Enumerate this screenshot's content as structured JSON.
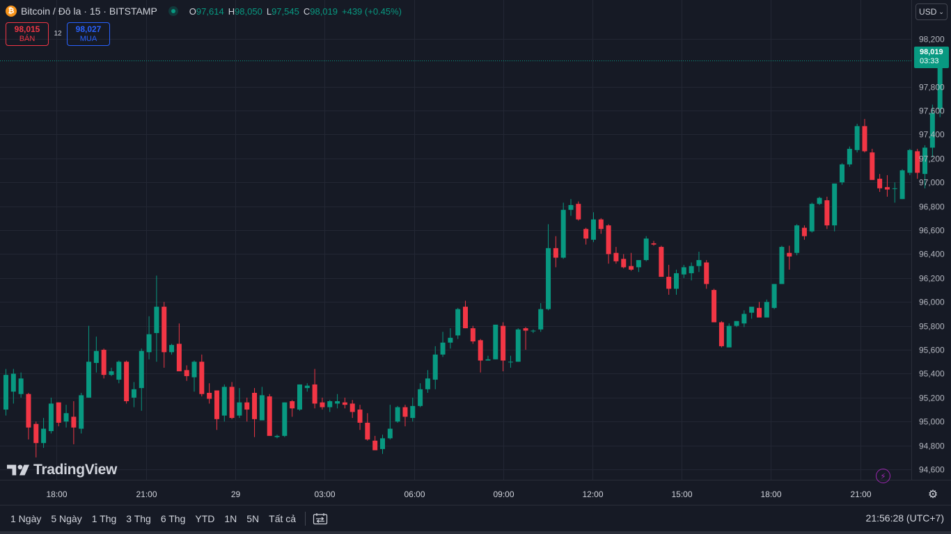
{
  "header": {
    "symbol_title": "Bitcoin / Đô la · 15 · BITSTAMP",
    "coin_icon": "₿",
    "open_label": "O",
    "open_value": "97,614",
    "high_label": "H",
    "high_value": "98,050",
    "low_label": "L",
    "low_value": "97,545",
    "close_label": "C",
    "close_value": "98,019",
    "change": "+439 (+0.45%)"
  },
  "trade": {
    "sell_price": "98,015",
    "sell_label": "BÁN",
    "spread": "12",
    "buy_price": "98,027",
    "buy_label": "MUA"
  },
  "currency_button": "USD",
  "last_price": {
    "value": "98,019",
    "countdown": "03:33"
  },
  "logo_text": "TradingView",
  "bottom_bar": {
    "ranges": [
      "1 Ngày",
      "5 Ngày",
      "1 Thg",
      "3 Thg",
      "6 Thg",
      "YTD",
      "1N",
      "5N",
      "Tất cả"
    ],
    "clock": "21:56:28 (UTC+7)"
  },
  "colors": {
    "up": "#089981",
    "down": "#f23645",
    "background": "#161a25",
    "grid": "#232734",
    "text": "#d1d4dc"
  },
  "icons": {
    "coin": "bitcoin-icon",
    "live": "market-open-dot-icon",
    "goto": "go-to-date-icon",
    "bolt": "lightning-icon",
    "settings": "gear-icon"
  },
  "chart_data": {
    "type": "candlestick",
    "interval": "15",
    "y_ticks": [
      94600,
      94800,
      95000,
      95200,
      95400,
      95600,
      95800,
      96000,
      96200,
      96400,
      96600,
      96800,
      97000,
      97200,
      97400,
      97600,
      97800,
      98200
    ],
    "x_ticks": [
      "18:00",
      "21:00",
      "29",
      "03:00",
      "06:00",
      "09:00",
      "12:00",
      "15:00",
      "18:00",
      "21:00"
    ],
    "ylim": [
      94455,
      98356
    ],
    "grid": true,
    "candles": [
      {
        "o": 95100,
        "h": 95440,
        "l": 95050,
        "c": 95390
      },
      {
        "o": 95250,
        "h": 95440,
        "l": 95150,
        "c": 95400
      },
      {
        "o": 95230,
        "h": 95410,
        "l": 95200,
        "c": 95360
      },
      {
        "o": 95230,
        "h": 95240,
        "l": 94850,
        "c": 94950
      },
      {
        "o": 94980,
        "h": 95000,
        "l": 94700,
        "c": 94820
      },
      {
        "o": 94820,
        "h": 95030,
        "l": 94780,
        "c": 94940
      },
      {
        "o": 94920,
        "h": 95200,
        "l": 94900,
        "c": 95150
      },
      {
        "o": 95160,
        "h": 95160,
        "l": 94960,
        "c": 94990
      },
      {
        "o": 95000,
        "h": 95140,
        "l": 94950,
        "c": 95070
      },
      {
        "o": 95040,
        "h": 95170,
        "l": 94810,
        "c": 94950
      },
      {
        "o": 94940,
        "h": 95240,
        "l": 94900,
        "c": 95220
      },
      {
        "o": 95200,
        "h": 95800,
        "l": 95200,
        "c": 95500
      },
      {
        "o": 95490,
        "h": 95710,
        "l": 95410,
        "c": 95590
      },
      {
        "o": 95600,
        "h": 95610,
        "l": 95360,
        "c": 95390
      },
      {
        "o": 95390,
        "h": 95450,
        "l": 95380,
        "c": 95420
      },
      {
        "o": 95350,
        "h": 95510,
        "l": 95320,
        "c": 95500
      },
      {
        "o": 95500,
        "h": 95510,
        "l": 95150,
        "c": 95170
      },
      {
        "o": 95200,
        "h": 95330,
        "l": 95120,
        "c": 95270
      },
      {
        "o": 95280,
        "h": 95610,
        "l": 95090,
        "c": 95590
      },
      {
        "o": 95580,
        "h": 95880,
        "l": 95520,
        "c": 95730
      },
      {
        "o": 95740,
        "h": 96220,
        "l": 95500,
        "c": 95960
      },
      {
        "o": 95960,
        "h": 96000,
        "l": 95450,
        "c": 95580
      },
      {
        "o": 95580,
        "h": 95650,
        "l": 95560,
        "c": 95640
      },
      {
        "o": 95650,
        "h": 95820,
        "l": 95420,
        "c": 95420
      },
      {
        "o": 95430,
        "h": 95470,
        "l": 95340,
        "c": 95380
      },
      {
        "o": 95370,
        "h": 95510,
        "l": 95250,
        "c": 95500
      },
      {
        "o": 95500,
        "h": 95560,
        "l": 95210,
        "c": 95230
      },
      {
        "o": 95240,
        "h": 95320,
        "l": 95150,
        "c": 95190
      },
      {
        "o": 95260,
        "h": 95260,
        "l": 94930,
        "c": 95020
      },
      {
        "o": 95050,
        "h": 95310,
        "l": 95000,
        "c": 95290
      },
      {
        "o": 95290,
        "h": 95330,
        "l": 95020,
        "c": 95030
      },
      {
        "o": 95050,
        "h": 95280,
        "l": 95030,
        "c": 95160
      },
      {
        "o": 95160,
        "h": 95200,
        "l": 95000,
        "c": 95100
      },
      {
        "o": 95240,
        "h": 95280,
        "l": 94870,
        "c": 95020
      },
      {
        "o": 95010,
        "h": 95290,
        "l": 95010,
        "c": 95220
      },
      {
        "o": 95210,
        "h": 95230,
        "l": 94880,
        "c": 94880
      },
      {
        "o": 94870,
        "h": 94890,
        "l": 94860,
        "c": 94880
      },
      {
        "o": 94880,
        "h": 95160,
        "l": 94870,
        "c": 95160
      },
      {
        "o": 95170,
        "h": 95180,
        "l": 95040,
        "c": 95110
      },
      {
        "o": 95100,
        "h": 95310,
        "l": 95090,
        "c": 95310
      },
      {
        "o": 95280,
        "h": 95320,
        "l": 95250,
        "c": 95300
      },
      {
        "o": 95310,
        "h": 95440,
        "l": 95110,
        "c": 95150
      },
      {
        "o": 95160,
        "h": 95200,
        "l": 95100,
        "c": 95120
      },
      {
        "o": 95120,
        "h": 95180,
        "l": 95080,
        "c": 95170
      },
      {
        "o": 95150,
        "h": 95230,
        "l": 95110,
        "c": 95170
      },
      {
        "o": 95160,
        "h": 95200,
        "l": 95110,
        "c": 95140
      },
      {
        "o": 95150,
        "h": 95180,
        "l": 95030,
        "c": 95080
      },
      {
        "o": 95100,
        "h": 95140,
        "l": 94930,
        "c": 94990
      },
      {
        "o": 94990,
        "h": 95070,
        "l": 94840,
        "c": 94850
      },
      {
        "o": 94840,
        "h": 94880,
        "l": 94760,
        "c": 94760
      },
      {
        "o": 94770,
        "h": 94890,
        "l": 94730,
        "c": 94860
      },
      {
        "o": 94860,
        "h": 95140,
        "l": 94850,
        "c": 94940
      },
      {
        "o": 95000,
        "h": 95130,
        "l": 94990,
        "c": 95120
      },
      {
        "o": 95120,
        "h": 95140,
        "l": 94960,
        "c": 95040
      },
      {
        "o": 95030,
        "h": 95200,
        "l": 95000,
        "c": 95130
      },
      {
        "o": 95130,
        "h": 95320,
        "l": 95120,
        "c": 95270
      },
      {
        "o": 95270,
        "h": 95430,
        "l": 95240,
        "c": 95360
      },
      {
        "o": 95350,
        "h": 95630,
        "l": 95270,
        "c": 95560
      },
      {
        "o": 95560,
        "h": 95750,
        "l": 95540,
        "c": 95660
      },
      {
        "o": 95660,
        "h": 95780,
        "l": 95610,
        "c": 95700
      },
      {
        "o": 95720,
        "h": 95950,
        "l": 95690,
        "c": 95940
      },
      {
        "o": 95960,
        "h": 96010,
        "l": 95780,
        "c": 95780
      },
      {
        "o": 95780,
        "h": 95800,
        "l": 95650,
        "c": 95670
      },
      {
        "o": 95680,
        "h": 95690,
        "l": 95410,
        "c": 95510
      },
      {
        "o": 95510,
        "h": 95550,
        "l": 95510,
        "c": 95520
      },
      {
        "o": 95520,
        "h": 95810,
        "l": 95520,
        "c": 95810
      },
      {
        "o": 95800,
        "h": 95830,
        "l": 95420,
        "c": 95510
      },
      {
        "o": 95500,
        "h": 95550,
        "l": 95450,
        "c": 95500
      },
      {
        "o": 95500,
        "h": 95780,
        "l": 95500,
        "c": 95770
      },
      {
        "o": 95780,
        "h": 95790,
        "l": 95600,
        "c": 95760
      },
      {
        "o": 95760,
        "h": 95770,
        "l": 95740,
        "c": 95760
      },
      {
        "o": 95770,
        "h": 95990,
        "l": 95750,
        "c": 95940
      },
      {
        "o": 95940,
        "h": 96650,
        "l": 95930,
        "c": 96450
      },
      {
        "o": 96450,
        "h": 96550,
        "l": 96290,
        "c": 96370
      },
      {
        "o": 96370,
        "h": 96830,
        "l": 96360,
        "c": 96770
      },
      {
        "o": 96770,
        "h": 96860,
        "l": 96720,
        "c": 96810
      },
      {
        "o": 96820,
        "h": 96840,
        "l": 96680,
        "c": 96690
      },
      {
        "o": 96610,
        "h": 96620,
        "l": 96480,
        "c": 96530
      },
      {
        "o": 96520,
        "h": 96750,
        "l": 96500,
        "c": 96690
      },
      {
        "o": 96690,
        "h": 96700,
        "l": 96570,
        "c": 96610
      },
      {
        "o": 96640,
        "h": 96650,
        "l": 96320,
        "c": 96400
      },
      {
        "o": 96410,
        "h": 96460,
        "l": 96320,
        "c": 96340
      },
      {
        "o": 96360,
        "h": 96400,
        "l": 96280,
        "c": 96290
      },
      {
        "o": 96300,
        "h": 96410,
        "l": 96260,
        "c": 96270
      },
      {
        "o": 96290,
        "h": 96340,
        "l": 96250,
        "c": 96350
      },
      {
        "o": 96350,
        "h": 96550,
        "l": 96340,
        "c": 96530
      },
      {
        "o": 96490,
        "h": 96510,
        "l": 96470,
        "c": 96480
      },
      {
        "o": 96460,
        "h": 96470,
        "l": 96210,
        "c": 96210
      },
      {
        "o": 96210,
        "h": 96310,
        "l": 96060,
        "c": 96110
      },
      {
        "o": 96110,
        "h": 96270,
        "l": 96060,
        "c": 96240
      },
      {
        "o": 96230,
        "h": 96310,
        "l": 96200,
        "c": 96290
      },
      {
        "o": 96240,
        "h": 96330,
        "l": 96180,
        "c": 96300
      },
      {
        "o": 96300,
        "h": 96420,
        "l": 96250,
        "c": 96350
      },
      {
        "o": 96330,
        "h": 96350,
        "l": 96110,
        "c": 96150
      },
      {
        "o": 96100,
        "h": 96110,
        "l": 95830,
        "c": 95830
      },
      {
        "o": 95830,
        "h": 95840,
        "l": 95620,
        "c": 95630
      },
      {
        "o": 95620,
        "h": 95820,
        "l": 95620,
        "c": 95800
      },
      {
        "o": 95800,
        "h": 95840,
        "l": 95790,
        "c": 95840
      },
      {
        "o": 95820,
        "h": 95930,
        "l": 95790,
        "c": 95900
      },
      {
        "o": 95910,
        "h": 95950,
        "l": 95860,
        "c": 95960
      },
      {
        "o": 95950,
        "h": 96000,
        "l": 95900,
        "c": 95870
      },
      {
        "o": 95870,
        "h": 96020,
        "l": 95880,
        "c": 96000
      },
      {
        "o": 95950,
        "h": 96150,
        "l": 95940,
        "c": 96150
      },
      {
        "o": 96150,
        "h": 96470,
        "l": 96150,
        "c": 96460
      },
      {
        "o": 96410,
        "h": 96470,
        "l": 96270,
        "c": 96380
      },
      {
        "o": 96410,
        "h": 96650,
        "l": 96390,
        "c": 96640
      },
      {
        "o": 96620,
        "h": 96640,
        "l": 96520,
        "c": 96550
      },
      {
        "o": 96590,
        "h": 96830,
        "l": 96580,
        "c": 96820
      },
      {
        "o": 96820,
        "h": 96880,
        "l": 96810,
        "c": 96870
      },
      {
        "o": 96850,
        "h": 96880,
        "l": 96610,
        "c": 96640
      },
      {
        "o": 96640,
        "h": 96990,
        "l": 96590,
        "c": 96990
      },
      {
        "o": 97000,
        "h": 97160,
        "l": 96980,
        "c": 97150
      },
      {
        "o": 97150,
        "h": 97300,
        "l": 97130,
        "c": 97280
      },
      {
        "o": 97270,
        "h": 97490,
        "l": 97250,
        "c": 97470
      },
      {
        "o": 97470,
        "h": 97530,
        "l": 97250,
        "c": 97260
      },
      {
        "o": 97250,
        "h": 97280,
        "l": 97030,
        "c": 97020
      },
      {
        "o": 97030,
        "h": 97070,
        "l": 96920,
        "c": 96950
      },
      {
        "o": 96960,
        "h": 97060,
        "l": 96880,
        "c": 96940
      },
      {
        "o": 96950,
        "h": 97000,
        "l": 96830,
        "c": 96950
      },
      {
        "o": 96860,
        "h": 97110,
        "l": 96860,
        "c": 97100
      },
      {
        "o": 97080,
        "h": 97280,
        "l": 97060,
        "c": 97270
      },
      {
        "o": 97260,
        "h": 97280,
        "l": 97030,
        "c": 97080
      },
      {
        "o": 97070,
        "h": 97310,
        "l": 96950,
        "c": 97290
      },
      {
        "o": 97290,
        "h": 97650,
        "l": 97210,
        "c": 97580
      },
      {
        "o": 97614,
        "h": 98050,
        "l": 97545,
        "c": 98019
      }
    ]
  }
}
